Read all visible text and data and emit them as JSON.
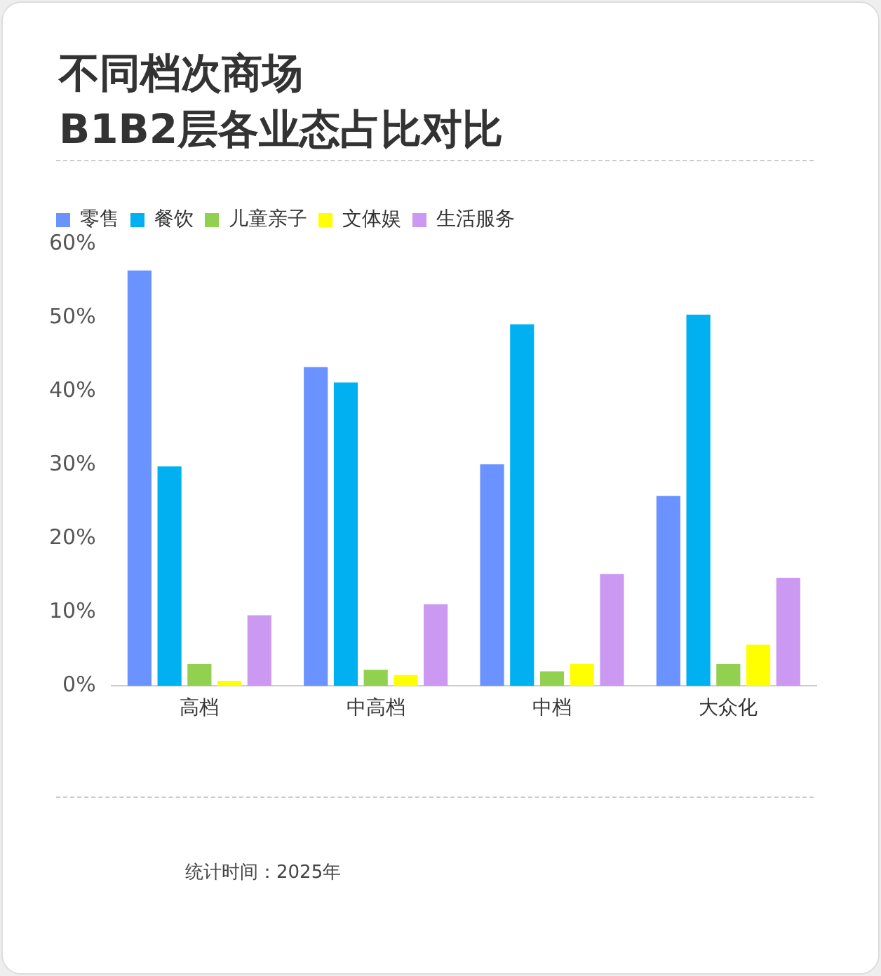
{
  "chart_data": {
    "type": "bar",
    "title": "不同档次商场\nB1B2层各业态占比对比",
    "categories": [
      "高档",
      "中高档",
      "中档",
      "大众化"
    ],
    "series": [
      {
        "name": "零售",
        "color": "#6b93ff",
        "values": [
          56.4,
          43.3,
          30.1,
          25.8
        ]
      },
      {
        "name": "餐饮",
        "color": "#00b0f0",
        "values": [
          29.8,
          41.2,
          49.1,
          50.4
        ]
      },
      {
        "name": "儿童亲子",
        "color": "#92d050",
        "values": [
          3.0,
          2.2,
          2.0,
          3.0
        ]
      },
      {
        "name": "文体娱",
        "color": "#ffff00",
        "values": [
          0.7,
          1.5,
          3.0,
          5.6
        ]
      },
      {
        "name": "生活服务",
        "color": "#cc99f2",
        "values": [
          9.6,
          11.1,
          15.2,
          14.7
        ]
      }
    ],
    "ylim": [
      0,
      60
    ],
    "yticks": [
      {
        "value": 0,
        "label": "0%"
      },
      {
        "value": 10,
        "label": "10%"
      },
      {
        "value": 20,
        "label": "20%"
      },
      {
        "value": 30,
        "label": "30%"
      },
      {
        "value": 40,
        "label": "40%"
      },
      {
        "value": 50,
        "label": "50%"
      },
      {
        "value": 60,
        "label": "60%"
      }
    ],
    "grid": false,
    "legend": "top left",
    "annotations": [
      "统计时间：2025年"
    ]
  }
}
